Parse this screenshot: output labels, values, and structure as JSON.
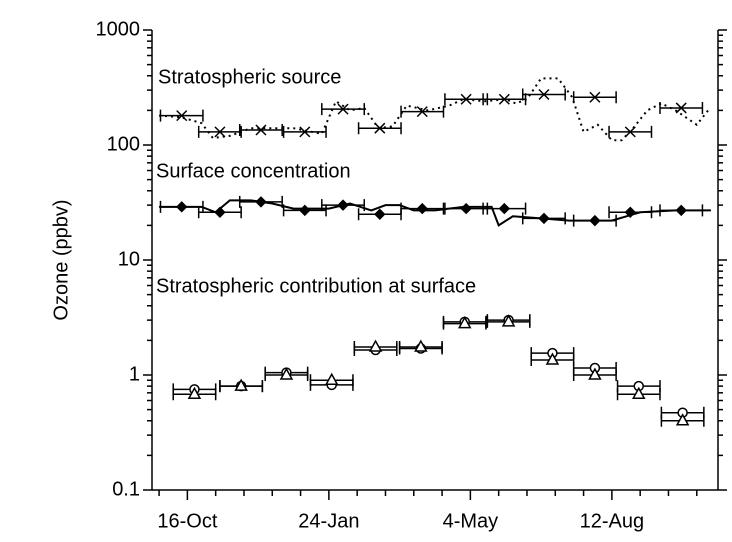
{
  "chart_data": {
    "type": "line",
    "y_label": "Ozone (ppbv)",
    "yscale": "log",
    "ylim": [
      0.1,
      1000
    ],
    "yticks": [
      0.1,
      1,
      10,
      100,
      1000
    ],
    "yminorticks": [
      0.2,
      0.3,
      0.4,
      0.5,
      0.6,
      0.7,
      0.8,
      0.9,
      2,
      3,
      4,
      5,
      6,
      7,
      8,
      9,
      20,
      30,
      40,
      50,
      60,
      70,
      80,
      90,
      200,
      300,
      400,
      500,
      600,
      700,
      800,
      900
    ],
    "xlim": [
      -25,
      375
    ],
    "xticks": [
      {
        "value": 0,
        "label": "16-Oct"
      },
      {
        "value": 100,
        "label": "24-Jan"
      },
      {
        "value": 200,
        "label": "4-May"
      },
      {
        "value": 300,
        "label": "12-Aug"
      }
    ],
    "xminorticks": [
      -20,
      20,
      40,
      60,
      80,
      120,
      140,
      160,
      180,
      220,
      240,
      260,
      280,
      320,
      340,
      360
    ],
    "annotations": [
      "Stratospheric source",
      "Surface concentration",
      "Stratospheric contribution at surface"
    ],
    "series": [
      {
        "marker": "x",
        "color": "#000000",
        "xerr": 15,
        "x": [
          -4,
          23,
          52,
          83,
          110,
          136,
          166,
          197,
          224,
          252,
          288,
          313,
          349
        ],
        "values": [
          180,
          130,
          135,
          130,
          205,
          140,
          195,
          250,
          250,
          275,
          260,
          130,
          210
        ]
      },
      {
        "marker": "none",
        "linestyle": "dotted",
        "color": "#000000",
        "x": [
          -20,
          -5,
          10,
          18,
          30,
          45,
          60,
          75,
          95,
          105,
          115,
          125,
          135,
          145,
          155,
          170,
          185,
          195,
          210,
          225,
          232,
          240,
          250,
          262,
          272,
          280,
          290,
          300,
          307,
          315,
          325,
          335,
          345,
          360,
          368
        ],
        "values": [
          180,
          175,
          155,
          115,
          120,
          140,
          140,
          140,
          125,
          240,
          200,
          210,
          140,
          145,
          220,
          200,
          220,
          250,
          240,
          250,
          230,
          250,
          380,
          380,
          260,
          130,
          150,
          110,
          110,
          140,
          200,
          230,
          200,
          150,
          200
        ]
      },
      {
        "marker": "diamond",
        "color": "#000000",
        "xerr": 15,
        "x": [
          -4,
          23,
          52,
          83,
          110,
          136,
          166,
          197,
          224,
          252,
          288,
          313,
          349
        ],
        "values": [
          29,
          26,
          32,
          27,
          30,
          25,
          28,
          28,
          28,
          23,
          22,
          26,
          27
        ]
      },
      {
        "marker": "none",
        "linestyle": "solid",
        "color": "#000000",
        "x": [
          -20,
          10,
          20,
          30,
          45,
          60,
          75,
          100,
          115,
          130,
          140,
          150,
          160,
          175,
          195,
          215,
          220,
          230,
          250,
          270,
          300,
          320,
          345,
          370
        ],
        "values": [
          29,
          29,
          26,
          33,
          33,
          31,
          28,
          28,
          31,
          27,
          30,
          30,
          27,
          27,
          29,
          29,
          20,
          24,
          23,
          22,
          22,
          26,
          27,
          27
        ]
      },
      {
        "marker": "circle",
        "color": "#000000",
        "xerr": 15,
        "x": [
          5,
          38,
          70,
          102,
          133,
          165,
          196,
          227,
          258,
          288,
          319,
          350
        ],
        "values": [
          0.75,
          0.8,
          1.05,
          0.82,
          1.65,
          1.7,
          2.9,
          3.0,
          1.55,
          1.15,
          0.8,
          0.47
        ]
      },
      {
        "marker": "triangle",
        "color": "#000000",
        "xerr": 15,
        "x": [
          5,
          38,
          70,
          102,
          133,
          165,
          196,
          227,
          258,
          288,
          319,
          350
        ],
        "values": [
          0.68,
          0.8,
          1.0,
          0.9,
          1.75,
          1.75,
          2.8,
          2.9,
          1.35,
          1.0,
          0.68,
          0.4
        ]
      }
    ]
  }
}
